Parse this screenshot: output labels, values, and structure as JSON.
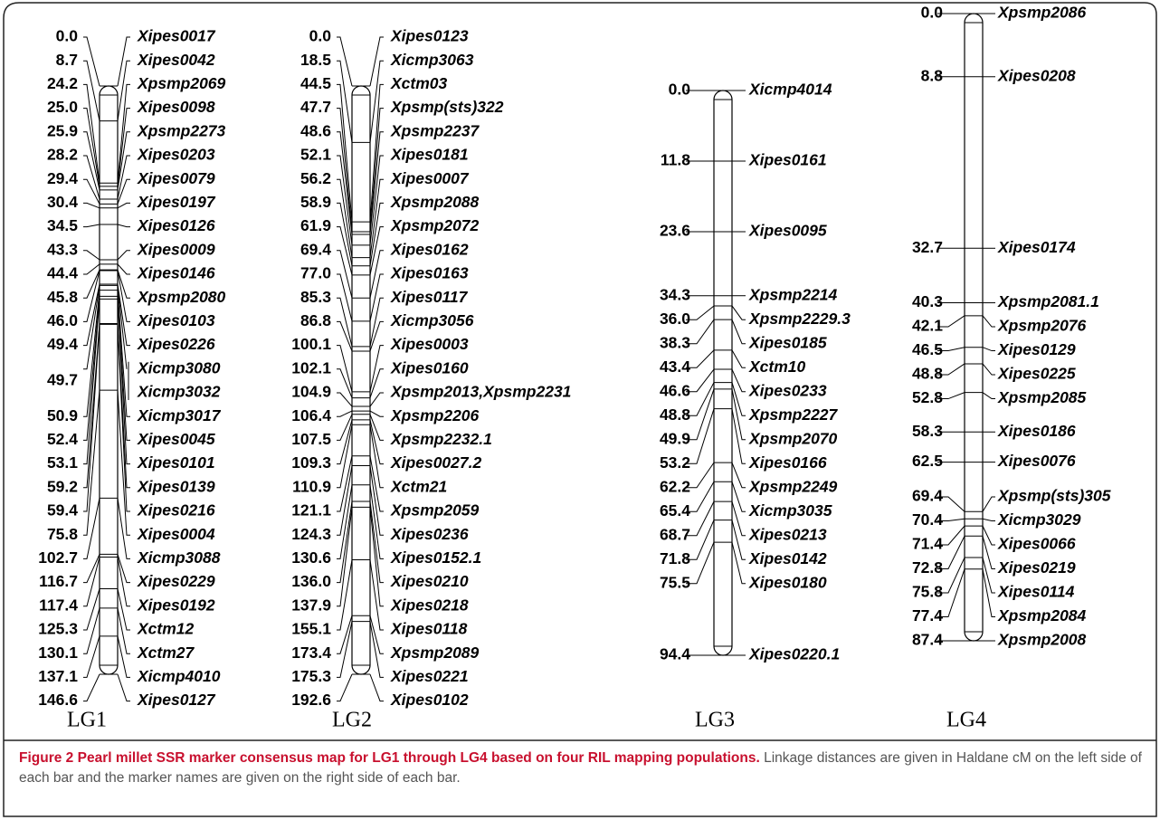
{
  "caption": {
    "figure_label": "Figure 2",
    "title": "Pearl millet SSR marker consensus map for LG1 through LG4 based on four RIL mapping populations.",
    "text": "Linkage distances are given in Haldane cM on the left side of each bar and the marker names are given on the right side of each bar."
  },
  "linkage_groups": [
    {
      "name": "LG1",
      "style": "fan",
      "markers": [
        {
          "pos": "0.0",
          "name": "Xipes0017"
        },
        {
          "pos": "8.7",
          "name": "Xipes0042"
        },
        {
          "pos": "24.2",
          "name": "Xpsmp2069"
        },
        {
          "pos": "25.0",
          "name": "Xipes0098"
        },
        {
          "pos": "25.9",
          "name": "Xpsmp2273"
        },
        {
          "pos": "28.2",
          "name": "Xipes0203"
        },
        {
          "pos": "29.4",
          "name": "Xipes0079"
        },
        {
          "pos": "30.4",
          "name": "Xipes0197"
        },
        {
          "pos": "34.5",
          "name": "Xipes0126"
        },
        {
          "pos": "43.3",
          "name": "Xipes0009"
        },
        {
          "pos": "44.4",
          "name": "Xipes0146"
        },
        {
          "pos": "45.8",
          "name": "Xpsmp2080"
        },
        {
          "pos": "46.0",
          "name": "Xipes0103"
        },
        {
          "pos": "49.4",
          "name": "Xipes0226"
        },
        {
          "pos": "49.7",
          "name": "Xicmp3080",
          "names": [
            "Xicmp3080",
            "Xicmp3032"
          ]
        },
        {
          "pos": "50.9",
          "name": "Xicmp3017"
        },
        {
          "pos": "52.4",
          "name": "Xipes0045"
        },
        {
          "pos": "53.1",
          "name": "Xipes0101"
        },
        {
          "pos": "59.2",
          "name": "Xipes0139"
        },
        {
          "pos": "59.4",
          "name": "Xipes0216"
        },
        {
          "pos": "75.8",
          "name": "Xipes0004"
        },
        {
          "pos": "102.7",
          "name": "Xicmp3088"
        },
        {
          "pos": "116.7",
          "name": "Xipes0229"
        },
        {
          "pos": "117.4",
          "name": "Xipes0192"
        },
        {
          "pos": "125.3",
          "name": "Xctm12"
        },
        {
          "pos": "130.1",
          "name": "Xctm27"
        },
        {
          "pos": "137.1",
          "name": "Xicmp4010"
        },
        {
          "pos": "146.6",
          "name": "Xipes0127"
        }
      ]
    },
    {
      "name": "LG2",
      "style": "fan",
      "markers": [
        {
          "pos": "0.0",
          "name": "Xipes0123"
        },
        {
          "pos": "18.5",
          "name": "Xicmp3063"
        },
        {
          "pos": "44.5",
          "name": "Xctm03"
        },
        {
          "pos": "47.7",
          "name": "Xpsmp(sts)322"
        },
        {
          "pos": "48.6",
          "name": "Xpsmp2237"
        },
        {
          "pos": "52.1",
          "name": "Xipes0181"
        },
        {
          "pos": "56.2",
          "name": "Xipes0007"
        },
        {
          "pos": "58.9",
          "name": "Xpsmp2088"
        },
        {
          "pos": "61.9",
          "name": "Xpsmp2072"
        },
        {
          "pos": "69.4",
          "name": "Xipes0162"
        },
        {
          "pos": "77.0",
          "name": "Xipes0163"
        },
        {
          "pos": "85.3",
          "name": "Xipes0117"
        },
        {
          "pos": "86.8",
          "name": "Xicmp3056"
        },
        {
          "pos": "100.1",
          "name": "Xipes0003"
        },
        {
          "pos": "102.1",
          "name": "Xipes0160"
        },
        {
          "pos": "104.9",
          "name": "Xpsmp2013,Xpsmp2231"
        },
        {
          "pos": "106.4",
          "name": "Xpsmp2206"
        },
        {
          "pos": "107.5",
          "name": "Xpsmp2232.1"
        },
        {
          "pos": "109.3",
          "name": "Xipes0027.2"
        },
        {
          "pos": "110.9",
          "name": "Xctm21"
        },
        {
          "pos": "121.1",
          "name": "Xpsmp2059"
        },
        {
          "pos": "124.3",
          "name": "Xipes0236"
        },
        {
          "pos": "130.6",
          "name": "Xipes0152.1"
        },
        {
          "pos": "136.0",
          "name": "Xipes0210"
        },
        {
          "pos": "137.9",
          "name": "Xipes0218"
        },
        {
          "pos": "155.1",
          "name": "Xipes0118"
        },
        {
          "pos": "173.4",
          "name": "Xpsmp2089"
        },
        {
          "pos": "175.3",
          "name": "Xipes0221"
        },
        {
          "pos": "192.6",
          "name": "Xipes0102"
        }
      ]
    },
    {
      "name": "LG3",
      "style": "linear",
      "markers": [
        {
          "pos": "0.0",
          "name": "Xicmp4014"
        },
        {
          "pos": "11.8",
          "name": "Xipes0161"
        },
        {
          "pos": "23.6",
          "name": "Xipes0095"
        },
        {
          "pos": "34.3",
          "name": "Xpsmp2214"
        },
        {
          "pos": "36.0",
          "name": "Xpsmp2229.3"
        },
        {
          "pos": "38.3",
          "name": "Xipes0185"
        },
        {
          "pos": "43.4",
          "name": "Xctm10"
        },
        {
          "pos": "46.6",
          "name": "Xipes0233"
        },
        {
          "pos": "48.8",
          "name": "Xpsmp2227"
        },
        {
          "pos": "49.9",
          "name": "Xpsmp2070"
        },
        {
          "pos": "53.2",
          "name": "Xipes0166"
        },
        {
          "pos": "62.2",
          "name": "Xpsmp2249"
        },
        {
          "pos": "65.4",
          "name": "Xicmp3035"
        },
        {
          "pos": "68.7",
          "name": "Xipes0213"
        },
        {
          "pos": "71.8",
          "name": "Xipes0142"
        },
        {
          "pos": "75.5",
          "name": "Xipes0180"
        },
        {
          "pos": "94.4",
          "name": "Xipes0220.1"
        }
      ]
    },
    {
      "name": "LG4",
      "style": "linear",
      "markers": [
        {
          "pos": "0.0",
          "name": "Xpsmp2086"
        },
        {
          "pos": "8.8",
          "name": "Xipes0208"
        },
        {
          "pos": "32.7",
          "name": "Xipes0174"
        },
        {
          "pos": "40.3",
          "name": "Xpsmp2081.1"
        },
        {
          "pos": "42.1",
          "name": "Xpsmp2076"
        },
        {
          "pos": "46.5",
          "name": "Xipes0129"
        },
        {
          "pos": "48.8",
          "name": "Xipes0225"
        },
        {
          "pos": "52.8",
          "name": "Xpsmp2085"
        },
        {
          "pos": "58.3",
          "name": "Xipes0186"
        },
        {
          "pos": "62.5",
          "name": "Xipes0076"
        },
        {
          "pos": "69.4",
          "name": "Xpsmp(sts)305"
        },
        {
          "pos": "70.4",
          "name": "Xicmp3029"
        },
        {
          "pos": "71.4",
          "name": "Xipes0066"
        },
        {
          "pos": "72.8",
          "name": "Xipes0219"
        },
        {
          "pos": "75.8",
          "name": "Xipes0114"
        },
        {
          "pos": "77.4",
          "name": "Xpsmp2084"
        },
        {
          "pos": "87.4",
          "name": "Xpsmp2008"
        }
      ]
    }
  ]
}
